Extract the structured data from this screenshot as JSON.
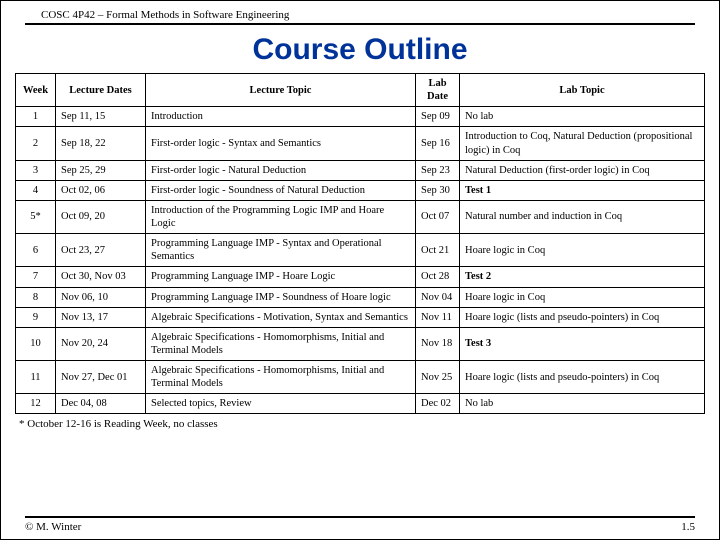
{
  "header": {
    "course_code": "COSC 4P42 – Formal Methods in Software Engineering"
  },
  "title": "Course Outline",
  "columns": [
    "Week",
    "Lecture Dates",
    "Lecture Topic",
    "Lab Date",
    "Lab Topic"
  ],
  "rows": [
    {
      "week": "1",
      "dates": "Sep 11, 15",
      "topic": "Introduction",
      "labdate": "Sep 09",
      "labtopic": "No lab"
    },
    {
      "week": "2",
      "dates": "Sep 18, 22",
      "topic": "First-order logic - Syntax and Semantics",
      "labdate": "Sep 16",
      "labtopic": "Introduction to Coq, Natural Deduction (propositional logic) in Coq"
    },
    {
      "week": "3",
      "dates": "Sep 25, 29",
      "topic": "First-order logic - Natural Deduction",
      "labdate": "Sep 23",
      "labtopic": "Natural Deduction (first-order logic) in Coq"
    },
    {
      "week": "4",
      "dates": "Oct 02, 06",
      "topic": "First-order logic - Soundness of Natural Deduction",
      "labdate": "Sep 30",
      "labtopic": "Test 1",
      "bold": true
    },
    {
      "week": "5*",
      "dates": "Oct 09, 20",
      "topic": "Introduction of the Programming Logic IMP and Hoare Logic",
      "labdate": "Oct 07",
      "labtopic": "Natural number and induction in Coq"
    },
    {
      "week": "6",
      "dates": "Oct 23, 27",
      "topic": "Programming Language IMP - Syntax and Operational Semantics",
      "labdate": "Oct 21",
      "labtopic": "Hoare logic in Coq"
    },
    {
      "week": "7",
      "dates": "Oct 30, Nov 03",
      "topic": "Programming Language IMP - Hoare Logic",
      "labdate": "Oct 28",
      "labtopic": "Test 2",
      "bold": true
    },
    {
      "week": "8",
      "dates": "Nov 06, 10",
      "topic": "Programming Language IMP - Soundness of Hoare logic",
      "labdate": "Nov 04",
      "labtopic": "Hoare logic in Coq"
    },
    {
      "week": "9",
      "dates": "Nov 13, 17",
      "topic": "Algebraic Specifications - Motivation, Syntax and Semantics",
      "labdate": "Nov 11",
      "labtopic": "Hoare logic (lists and pseudo-pointers) in Coq"
    },
    {
      "week": "10",
      "dates": "Nov 20, 24",
      "topic": "Algebraic Specifications - Homomorphisms, Initial and Terminal Models",
      "labdate": "Nov 18",
      "labtopic": "Test 3",
      "bold": true
    },
    {
      "week": "11",
      "dates": "Nov 27, Dec 01",
      "topic": "Algebraic Specifications - Homomorphisms, Initial and Terminal Models",
      "labdate": "Nov 25",
      "labtopic": "Hoare logic (lists and pseudo-pointers) in Coq"
    },
    {
      "week": "12",
      "dates": "Dec 04, 08",
      "topic": "Selected topics, Review",
      "labdate": "Dec 02",
      "labtopic": "No lab"
    }
  ],
  "footnote": "* October 12-16 is Reading Week, no classes",
  "footer": {
    "copyright": "© M. Winter",
    "page": "1.5"
  }
}
